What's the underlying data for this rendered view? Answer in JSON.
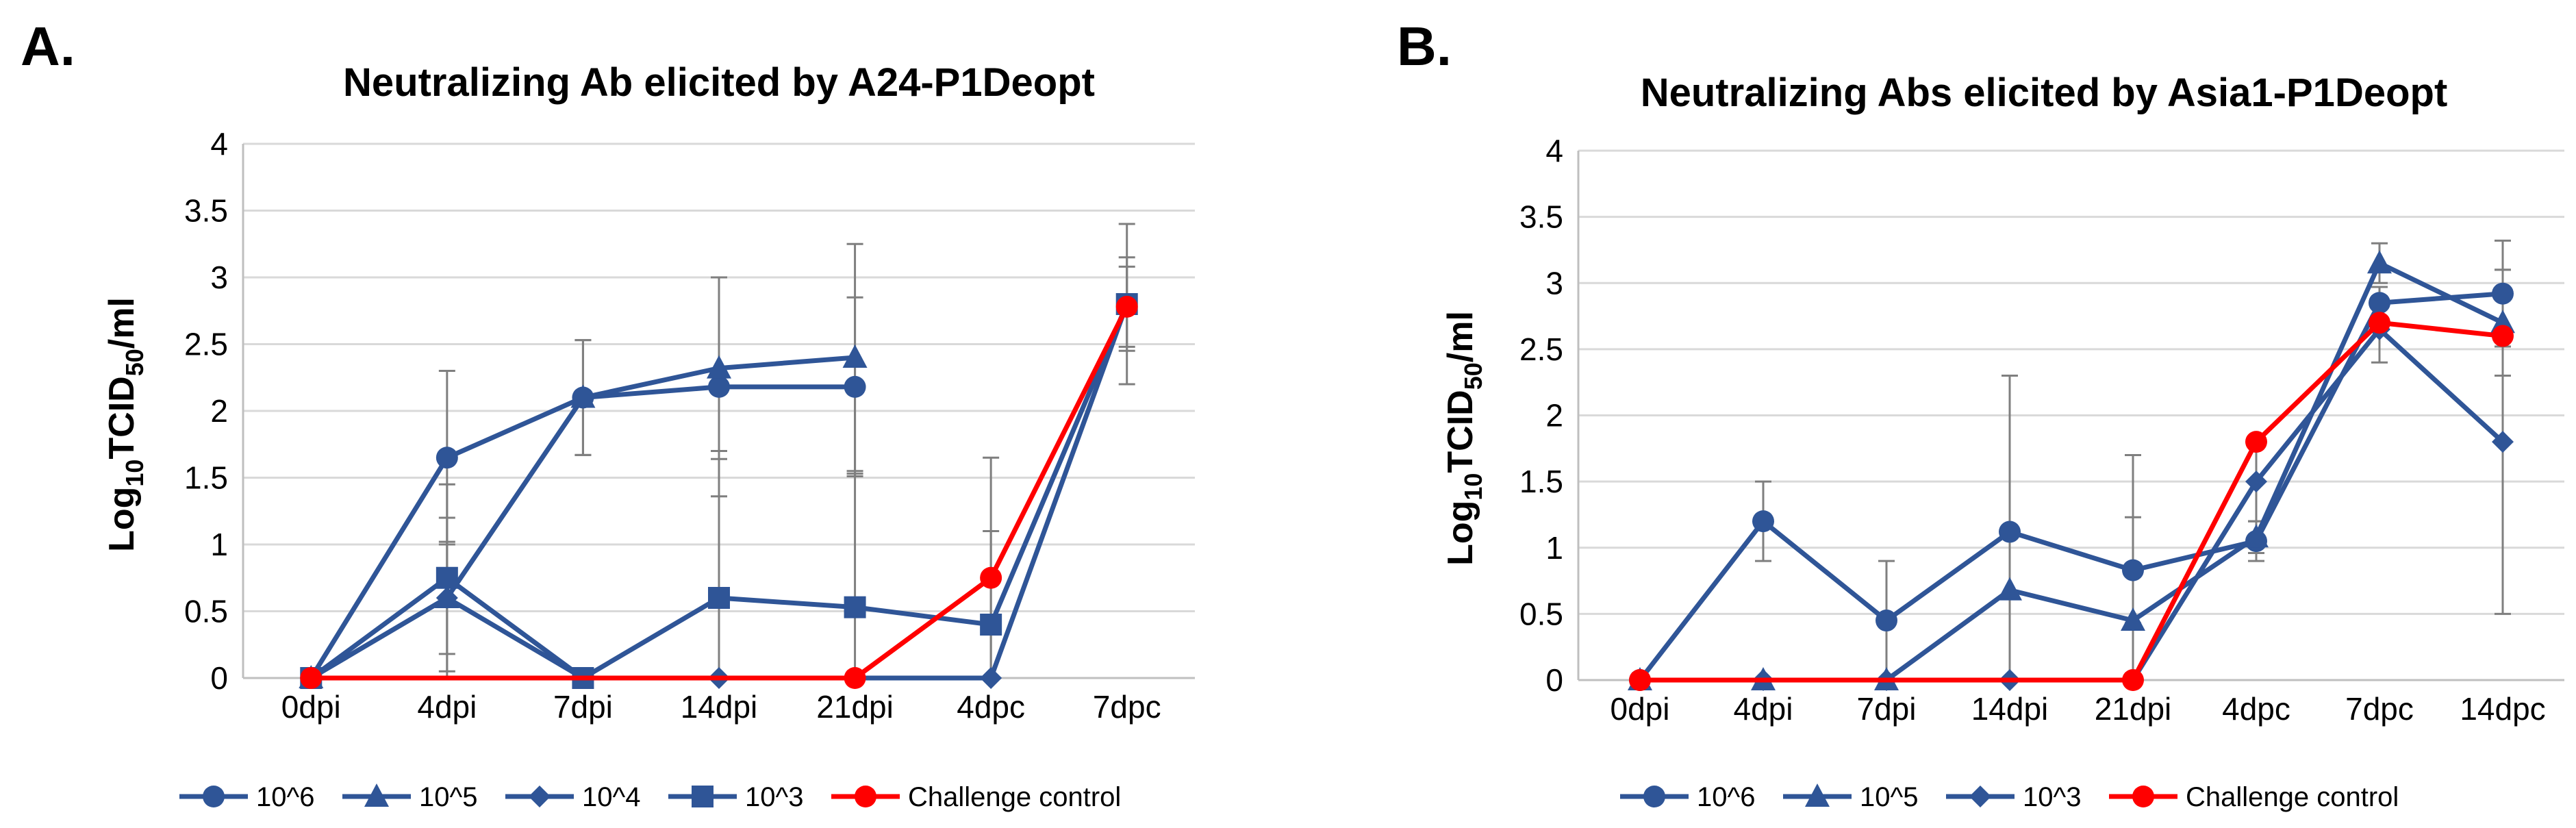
{
  "chart_data": [
    {
      "type": "line",
      "panel_label": "A.",
      "title": "Neutralizing Ab elicited by A24-P1Deopt",
      "ylabel_main": "Log",
      "ylabel_sub": "10",
      "ylabel_mid": "TCID",
      "ylabel_sub2": "50",
      "ylabel_end": "/ml",
      "categories": [
        "0dpi",
        "4dpi",
        "7dpi",
        "14dpi",
        "21dpi",
        "4dpc",
        "7dpc"
      ],
      "ylim": [
        0,
        4
      ],
      "yticks": [
        "0",
        "0.5",
        "1",
        "1.5",
        "2",
        "2.5",
        "3",
        "3.5",
        "4"
      ],
      "grid": true,
      "legend_position": "bottom",
      "series": [
        {
          "name": "10^6",
          "marker": "circle",
          "color": "#2f5597",
          "values": [
            0,
            1.65,
            2.1,
            2.18,
            2.18,
            null,
            null
          ],
          "errors": [
            0,
            0.65,
            0.43,
            0.82,
            0.67,
            null,
            null
          ]
        },
        {
          "name": "10^5",
          "marker": "triangle",
          "color": "#2f5597",
          "values": [
            0,
            0.6,
            2.1,
            2.32,
            2.4,
            null,
            null
          ],
          "errors": [
            0,
            0.6,
            0.43,
            0.68,
            0.85,
            null,
            null
          ]
        },
        {
          "name": "10^4",
          "marker": "diamond",
          "color": "#2f5597",
          "values": [
            0,
            0.6,
            0,
            0,
            0,
            0,
            2.8
          ],
          "errors": [
            0,
            0.42,
            0,
            0,
            0,
            0,
            0.35
          ]
        },
        {
          "name": "10^3",
          "marker": "square",
          "color": "#2f5597",
          "values": [
            0,
            0.75,
            0,
            0.6,
            0.53,
            0.4,
            2.8
          ],
          "errors": [
            0,
            0.7,
            0,
            1.1,
            1.0,
            0.7,
            0.6
          ]
        },
        {
          "name": "Challenge control",
          "marker": "circle",
          "color": "#ff0000",
          "values": [
            0,
            null,
            null,
            null,
            0,
            0.75,
            2.78
          ],
          "errors": [
            0,
            null,
            null,
            null,
            0,
            0.9,
            0.3
          ]
        }
      ]
    },
    {
      "type": "line",
      "panel_label": "B.",
      "title": "Neutralizing Abs elicited by Asia1-P1Deopt",
      "ylabel_main": "Log",
      "ylabel_sub": "10",
      "ylabel_mid": "TCID",
      "ylabel_sub2": "50",
      "ylabel_end": "/ml",
      "categories": [
        "0dpi",
        "4dpi",
        "7dpi",
        "14dpi",
        "21dpi",
        "4dpc",
        "7dpc",
        "14dpc"
      ],
      "ylim": [
        0,
        4
      ],
      "yticks": [
        "0",
        "0.5",
        "1",
        "1.5",
        "2",
        "2.5",
        "3",
        "3.5",
        "4"
      ],
      "grid": true,
      "legend_position": "bottom",
      "series": [
        {
          "name": "10^6",
          "marker": "circle",
          "color": "#2f5597",
          "values": [
            0,
            1.2,
            0.45,
            1.12,
            0.83,
            1.05,
            2.85,
            2.92
          ],
          "errors": [
            0,
            0.3,
            0.45,
            1.18,
            0.4,
            0.15,
            0.12,
            0.4
          ]
        },
        {
          "name": "10^5",
          "marker": "triangle",
          "color": "#2f5597",
          "values": [
            0,
            0,
            0,
            0.68,
            0.45,
            1.08,
            3.15,
            2.7
          ],
          "errors": [
            0,
            0,
            0,
            1.62,
            1.25,
            0.12,
            0.15,
            0.4
          ]
        },
        {
          "name": "10^3",
          "marker": "diamond",
          "color": "#2f5597",
          "values": [
            0,
            0,
            0,
            0,
            0,
            1.5,
            2.65,
            1.8
          ],
          "errors": [
            0,
            0,
            0,
            0,
            0,
            0.3,
            0.25,
            1.3
          ]
        },
        {
          "name": "Challenge control",
          "marker": "circle",
          "color": "#ff0000",
          "values": [
            0,
            null,
            null,
            null,
            0,
            1.8,
            2.7,
            2.6
          ],
          "errors": [
            0,
            null,
            null,
            null,
            0,
            0,
            0,
            0
          ]
        }
      ]
    }
  ]
}
